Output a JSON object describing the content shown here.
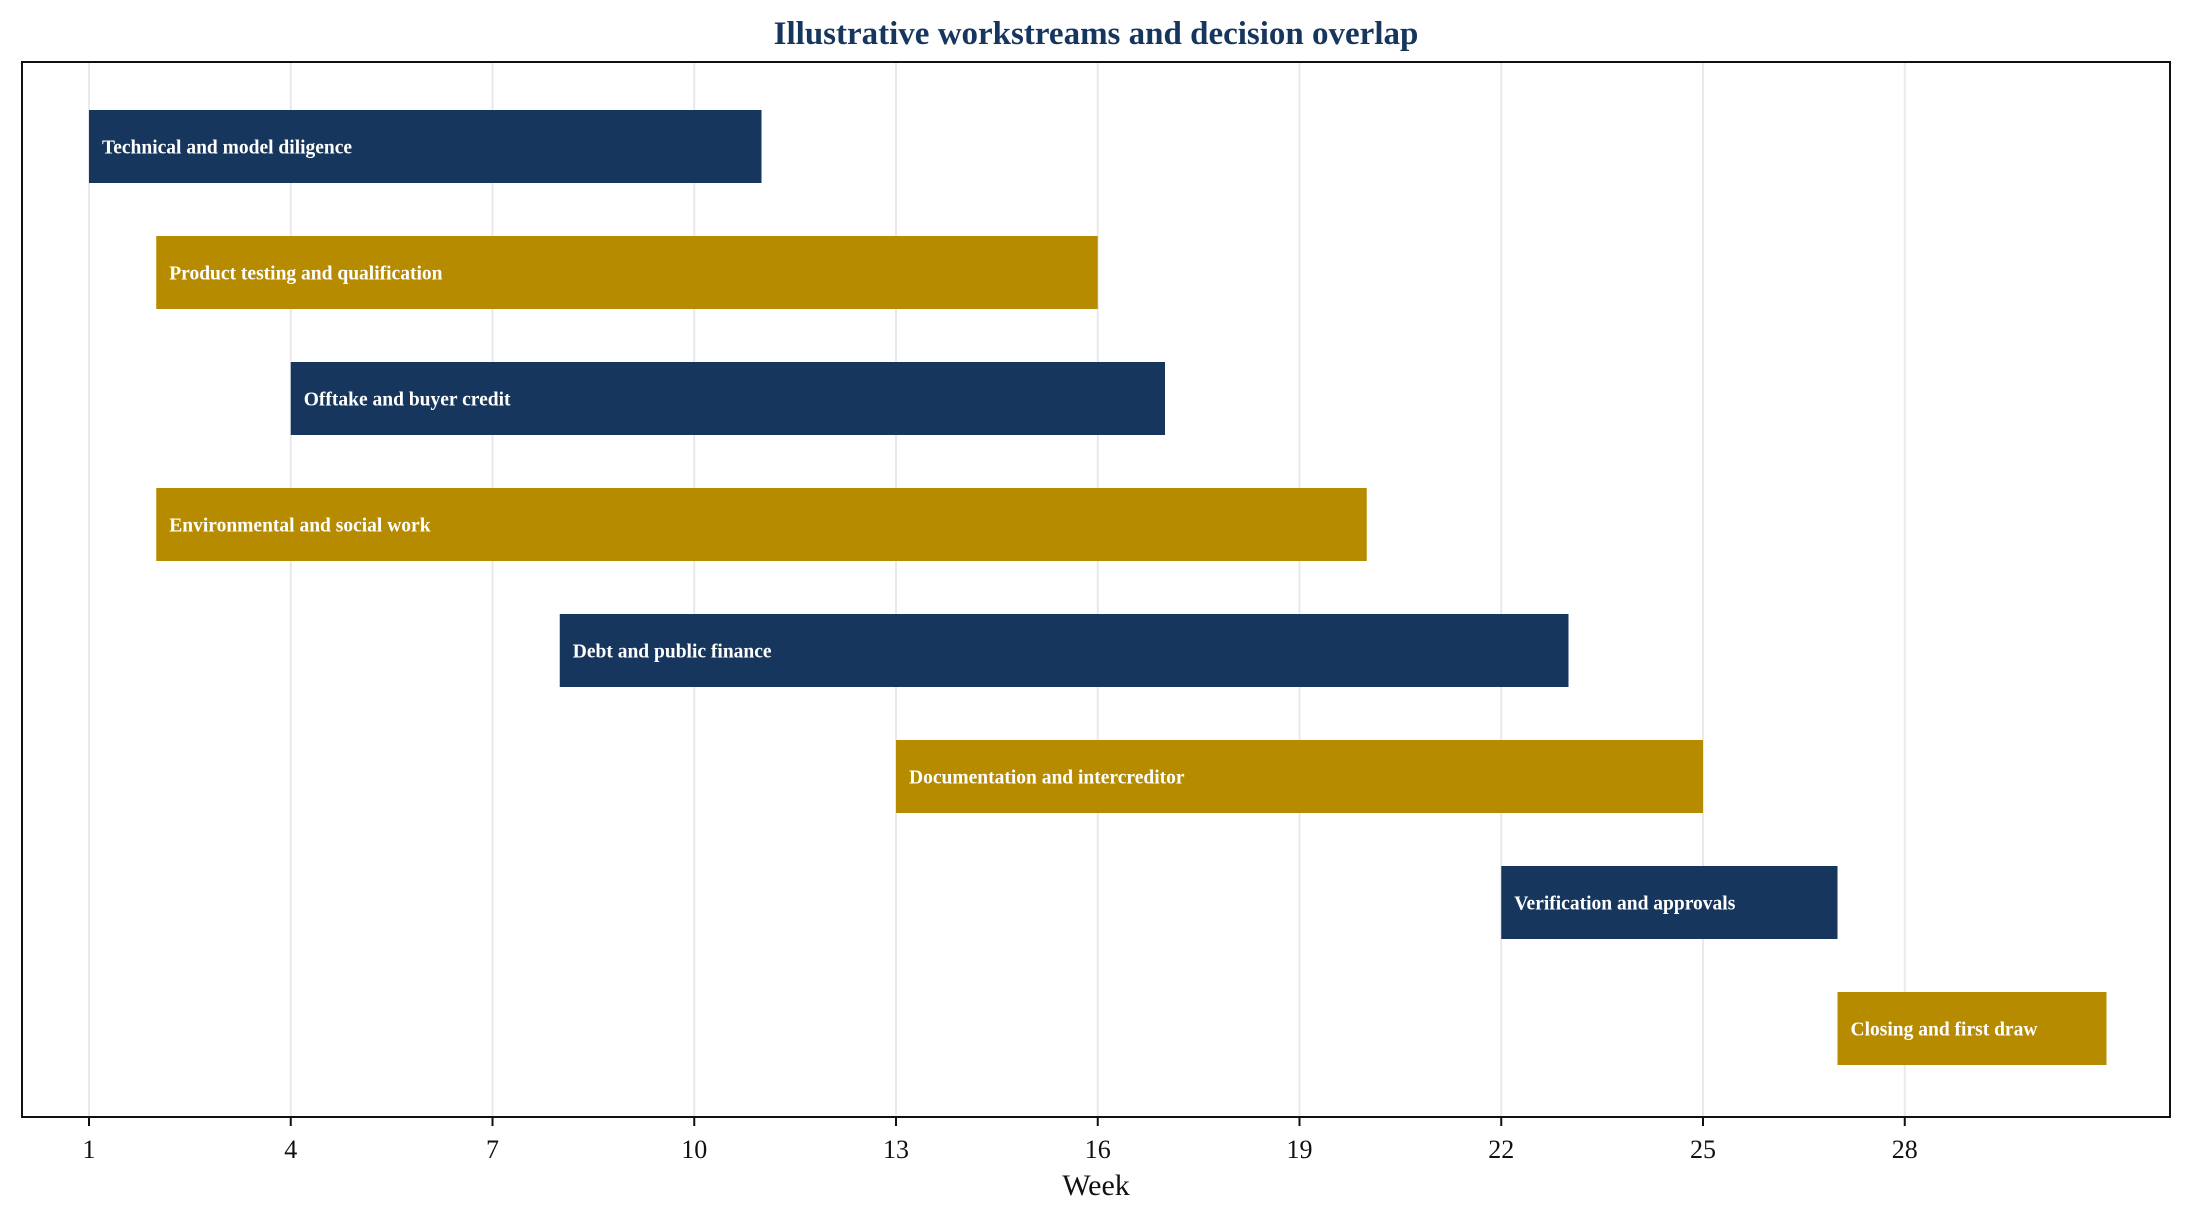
{
  "chart_data": {
    "type": "bar",
    "orientation": "horizontal",
    "title": "Illustrative workstreams and decision overlap",
    "xlabel": "Week",
    "ylabel": "",
    "xticks": [
      1,
      4,
      7,
      10,
      13,
      16,
      19,
      22,
      25,
      28
    ],
    "xlim": [
      0,
      32.5
    ],
    "grid": true,
    "legend": "none",
    "tasks": [
      {
        "label": "Technical and model diligence",
        "start": 1,
        "end": 11,
        "color": "#17365d"
      },
      {
        "label": "Product testing and qualification",
        "start": 2,
        "end": 16,
        "color": "#b78b00"
      },
      {
        "label": "Offtake and buyer credit",
        "start": 4,
        "end": 17,
        "color": "#17365d"
      },
      {
        "label": "Environmental and social work",
        "start": 2,
        "end": 20,
        "color": "#b78b00"
      },
      {
        "label": "Debt and public finance",
        "start": 8,
        "end": 23,
        "color": "#17365d"
      },
      {
        "label": "Documentation and intercreditor",
        "start": 13,
        "end": 25,
        "color": "#b78b00"
      },
      {
        "label": "Verification and approvals",
        "start": 22,
        "end": 27,
        "color": "#17365d"
      },
      {
        "label": "Closing and first draw",
        "start": 27,
        "end": 31,
        "color": "#b78b00"
      }
    ],
    "colors": {
      "title": "#17365d",
      "grid": "#e9e9e9",
      "frame": "#111111",
      "navy": "#17365d",
      "gold": "#b78b00"
    }
  }
}
